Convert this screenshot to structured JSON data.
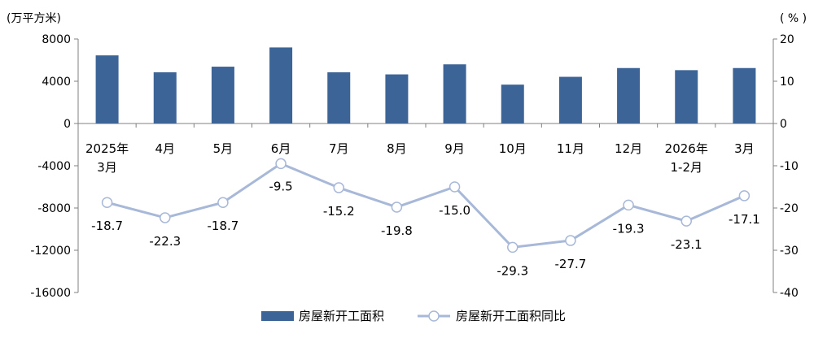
{
  "chart_data": {
    "type": "bar",
    "categories": [
      [
        "2025年",
        "3月"
      ],
      [
        "4月"
      ],
      [
        "5月"
      ],
      [
        "6月"
      ],
      [
        "7月"
      ],
      [
        "8月"
      ],
      [
        "9月"
      ],
      [
        "10月"
      ],
      [
        "11月"
      ],
      [
        "12月"
      ],
      [
        "2026年",
        "1-2月"
      ],
      [
        "3月"
      ]
    ],
    "y_left": {
      "unit": "(万平方米)",
      "ylim": [
        -16000,
        8000
      ],
      "ticks": [
        8000,
        4000,
        0,
        -4000,
        -8000,
        -12000,
        -16000
      ]
    },
    "y_right": {
      "unit": "( % )",
      "ylim": [
        -40,
        20
      ],
      "ticks": [
        20,
        10,
        0,
        -10,
        -20,
        -30,
        -40
      ]
    },
    "series": [
      {
        "name": "房屋新开工面积",
        "type": "bar",
        "axis": "left",
        "color": "#3c6497",
        "values": [
          6450,
          4850,
          5380,
          7200,
          4850,
          4650,
          5600,
          3680,
          4420,
          5250,
          5050,
          5250
        ]
      },
      {
        "name": "房屋新开工面积同比",
        "type": "line",
        "axis": "right",
        "color": "#a8b8d8",
        "marker": "circle",
        "values": [
          -18.7,
          -22.3,
          -18.7,
          -9.5,
          -15.2,
          -19.8,
          -15.0,
          -29.3,
          -27.7,
          -19.3,
          -23.1,
          -17.1
        ],
        "labels": [
          "-18.7",
          "-22.3",
          "-18.7",
          "-9.5",
          "-15.2",
          "-19.8",
          "-15.0",
          "-29.3",
          "-27.7",
          "-19.3",
          "-23.1",
          "-17.1"
        ]
      }
    ],
    "legend": {
      "position": "bottom",
      "items": [
        "房屋新开工面积",
        "房屋新开工面积同比"
      ]
    },
    "grid": false
  }
}
